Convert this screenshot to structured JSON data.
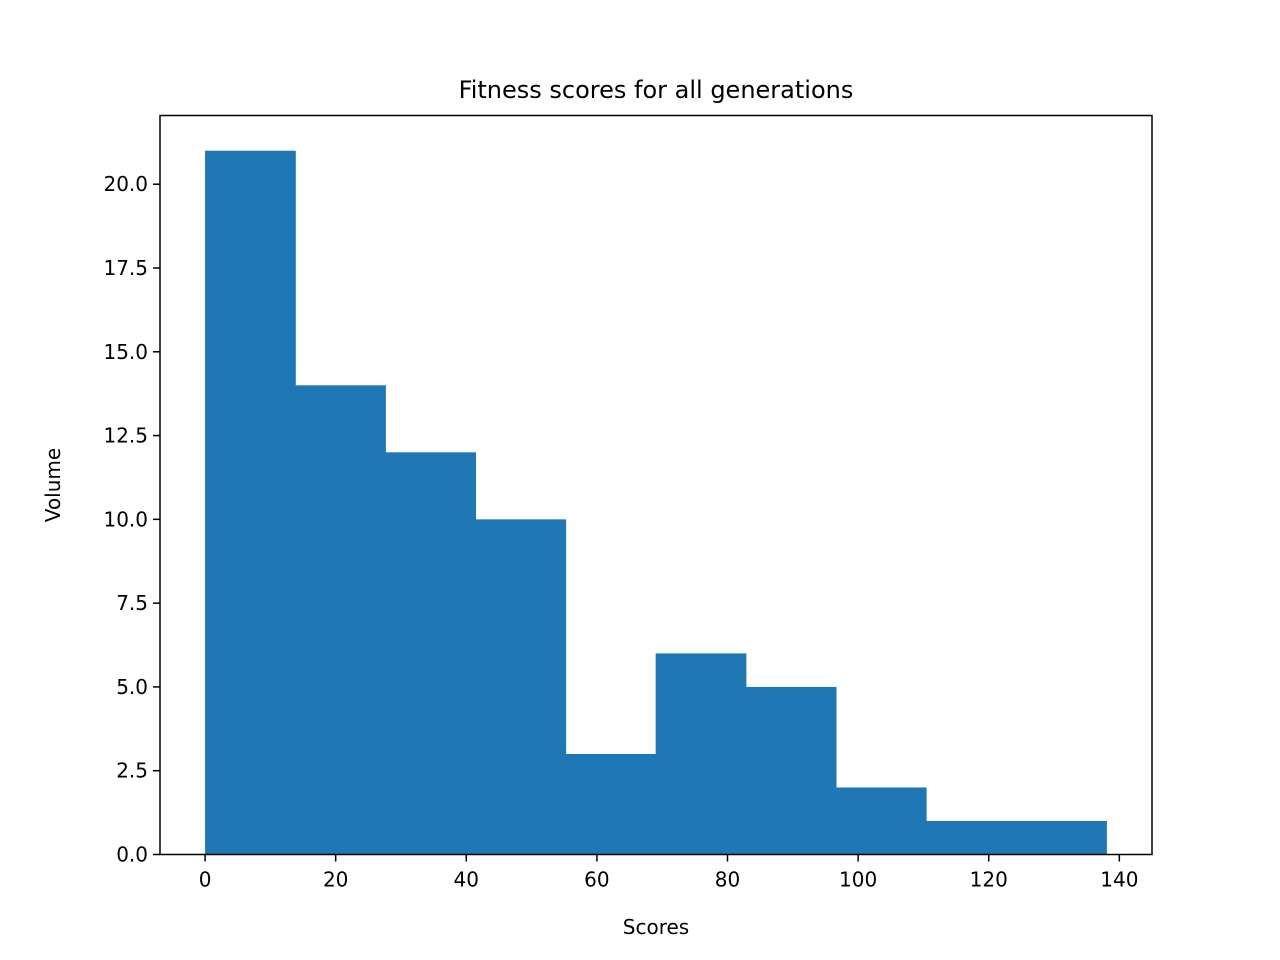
{
  "chart_data": {
    "type": "bar",
    "title": "Fitness scores for all generations",
    "xlabel": "Scores",
    "ylabel": "Volume",
    "xlim": [
      -6.9,
      145.0
    ],
    "ylim": [
      0,
      22.05
    ],
    "bin_edges": [
      0.0,
      13.8,
      27.6,
      41.4,
      55.2,
      69.0,
      82.8,
      96.6,
      110.4,
      124.2,
      138.0
    ],
    "values": [
      21,
      14,
      12,
      10,
      3,
      6,
      5,
      2,
      1,
      1
    ],
    "bar_color": "#1f77b4",
    "xticks": [
      0,
      20,
      40,
      60,
      80,
      100,
      120,
      140
    ],
    "xtick_labels": [
      "0",
      "20",
      "40",
      "60",
      "80",
      "100",
      "120",
      "140"
    ],
    "yticks": [
      0,
      2.5,
      5,
      7.5,
      10,
      12.5,
      15,
      17.5,
      20
    ],
    "ytick_labels": [
      "0.0",
      "2.5",
      "5.0",
      "7.5",
      "10.0",
      "12.5",
      "15.0",
      "17.5",
      "20.0"
    ],
    "grid": false,
    "legend": false
  }
}
